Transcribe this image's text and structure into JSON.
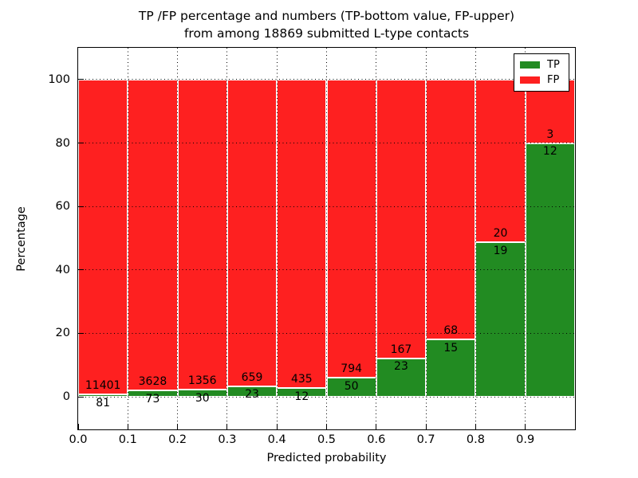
{
  "title": {
    "line1": "TP /FP percentage and numbers (TP-bottom value, FP-upper)",
    "line2": "from among 18869 submitted L-type contacts"
  },
  "axes": {
    "xlabel": "Predicted probability",
    "ylabel": "Percentage"
  },
  "legend": {
    "entries": [
      {
        "label": "TP",
        "color": "#228b22"
      },
      {
        "label": "FP",
        "color": "#fe2020"
      }
    ],
    "position": "upper right"
  },
  "colors": {
    "tp_green": "#228b22",
    "fp_red": "#fe2020",
    "bar_edge": "#ffffff",
    "grid": "#000000",
    "background": "#ffffff"
  },
  "chart_data": {
    "type": "bar",
    "stacked": true,
    "orientation": "vertical",
    "title": "TP /FP percentage and numbers (TP-bottom value, FP-upper)\nfrom among 18869 submitted L-type contacts",
    "xlabel": "Predicted probability",
    "ylabel": "Percentage",
    "total_contacts": 18869,
    "xlim": [
      0.0,
      1.0
    ],
    "ylim": [
      -10.3,
      110.05
    ],
    "x_ticks": [
      "0.0",
      "0.1",
      "0.2",
      "0.3",
      "0.4",
      "0.5",
      "0.6",
      "0.7",
      "0.8",
      "0.9"
    ],
    "y_ticks": [
      "0",
      "20",
      "40",
      "60",
      "80",
      "100"
    ],
    "grid": "dotted, drawn above bars",
    "legend_position": "upper right",
    "series": [
      {
        "name": "TP",
        "color": "#228b22",
        "values": [
          81,
          73,
          30,
          23,
          12,
          50,
          23,
          15,
          19,
          12
        ]
      },
      {
        "name": "FP",
        "color": "#fe2020",
        "values": [
          11401,
          3628,
          1356,
          659,
          435,
          794,
          167,
          68,
          20,
          3
        ]
      }
    ],
    "bins": [
      {
        "range": [
          0.0,
          0.1
        ],
        "tp": 81,
        "fp": 11401,
        "tp_percent": 0.71,
        "fp_percent": 99.29
      },
      {
        "range": [
          0.1,
          0.2
        ],
        "tp": 73,
        "fp": 3628,
        "tp_percent": 1.97,
        "fp_percent": 98.03
      },
      {
        "range": [
          0.2,
          0.3
        ],
        "tp": 30,
        "fp": 1356,
        "tp_percent": 2.16,
        "fp_percent": 97.84
      },
      {
        "range": [
          0.3,
          0.4
        ],
        "tp": 23,
        "fp": 659,
        "tp_percent": 3.37,
        "fp_percent": 96.63
      },
      {
        "range": [
          0.4,
          0.5
        ],
        "tp": 12,
        "fp": 435,
        "tp_percent": 2.68,
        "fp_percent": 97.32
      },
      {
        "range": [
          0.5,
          0.6
        ],
        "tp": 50,
        "fp": 794,
        "tp_percent": 5.92,
        "fp_percent": 94.08
      },
      {
        "range": [
          0.6,
          0.7
        ],
        "tp": 23,
        "fp": 167,
        "tp_percent": 12.11,
        "fp_percent": 87.89
      },
      {
        "range": [
          0.7,
          0.8
        ],
        "tp": 15,
        "fp": 68,
        "tp_percent": 18.07,
        "fp_percent": 81.93
      },
      {
        "range": [
          0.8,
          0.9
        ],
        "tp": 19,
        "fp": 20,
        "tp_percent": 48.72,
        "fp_percent": 51.28
      },
      {
        "range": [
          0.9,
          1.0
        ],
        "tp": 12,
        "fp": 3,
        "tp_percent": 80.0,
        "fp_percent": 20.0
      }
    ]
  }
}
